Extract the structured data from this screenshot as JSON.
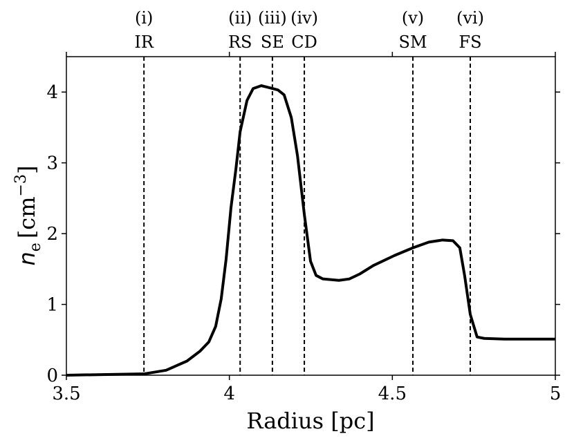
{
  "chart_data": {
    "type": "line",
    "xlabel": "Radius [pc]",
    "ylabel": {
      "symbol": "n",
      "subscript": "e",
      "unit": "[cm",
      "exponent": "−3",
      "close": "]"
    },
    "x": [
      3.5,
      3.74,
      3.806,
      3.87,
      3.91,
      3.937,
      3.958,
      3.975,
      3.99,
      4.005,
      4.02,
      4.033,
      4.054,
      4.073,
      4.098,
      4.124,
      4.149,
      4.168,
      4.19,
      4.209,
      4.23,
      4.249,
      4.266,
      4.287,
      4.336,
      4.368,
      4.4,
      4.442,
      4.506,
      4.563,
      4.612,
      4.654,
      4.686,
      4.707,
      4.722,
      4.739,
      4.76,
      4.782,
      4.845,
      5.0
    ],
    "series": [
      {
        "color": "#000000",
        "values": [
          0,
          0.02,
          0.07,
          0.2,
          0.34,
          0.47,
          0.69,
          1.08,
          1.64,
          2.37,
          2.91,
          3.44,
          3.88,
          4.05,
          4.09,
          4.06,
          4.03,
          3.96,
          3.64,
          3.1,
          2.27,
          1.61,
          1.41,
          1.36,
          1.34,
          1.36,
          1.43,
          1.55,
          1.69,
          1.8,
          1.88,
          1.91,
          1.9,
          1.8,
          1.4,
          0.86,
          0.54,
          0.52,
          0.51,
          0.51
        ]
      }
    ],
    "xlim": [
      3.5,
      5
    ],
    "xticks": [
      3.5,
      4,
      4.5,
      5
    ],
    "ylim": [
      0,
      4.5
    ],
    "yticks": [
      0,
      1,
      2,
      3,
      4
    ],
    "markers": [
      {
        "x": 3.738,
        "numeral": "(i)",
        "label": "IR"
      },
      {
        "x": 4.033,
        "numeral": "(ii)",
        "label": "RS"
      },
      {
        "x": 4.132,
        "numeral": "(iii)",
        "label": "SE"
      },
      {
        "x": 4.23,
        "numeral": "(iv)",
        "label": "CD"
      },
      {
        "x": 4.563,
        "numeral": "(v)",
        "label": "SM"
      },
      {
        "x": 4.739,
        "numeral": "(vi)",
        "label": "FS"
      }
    ]
  }
}
